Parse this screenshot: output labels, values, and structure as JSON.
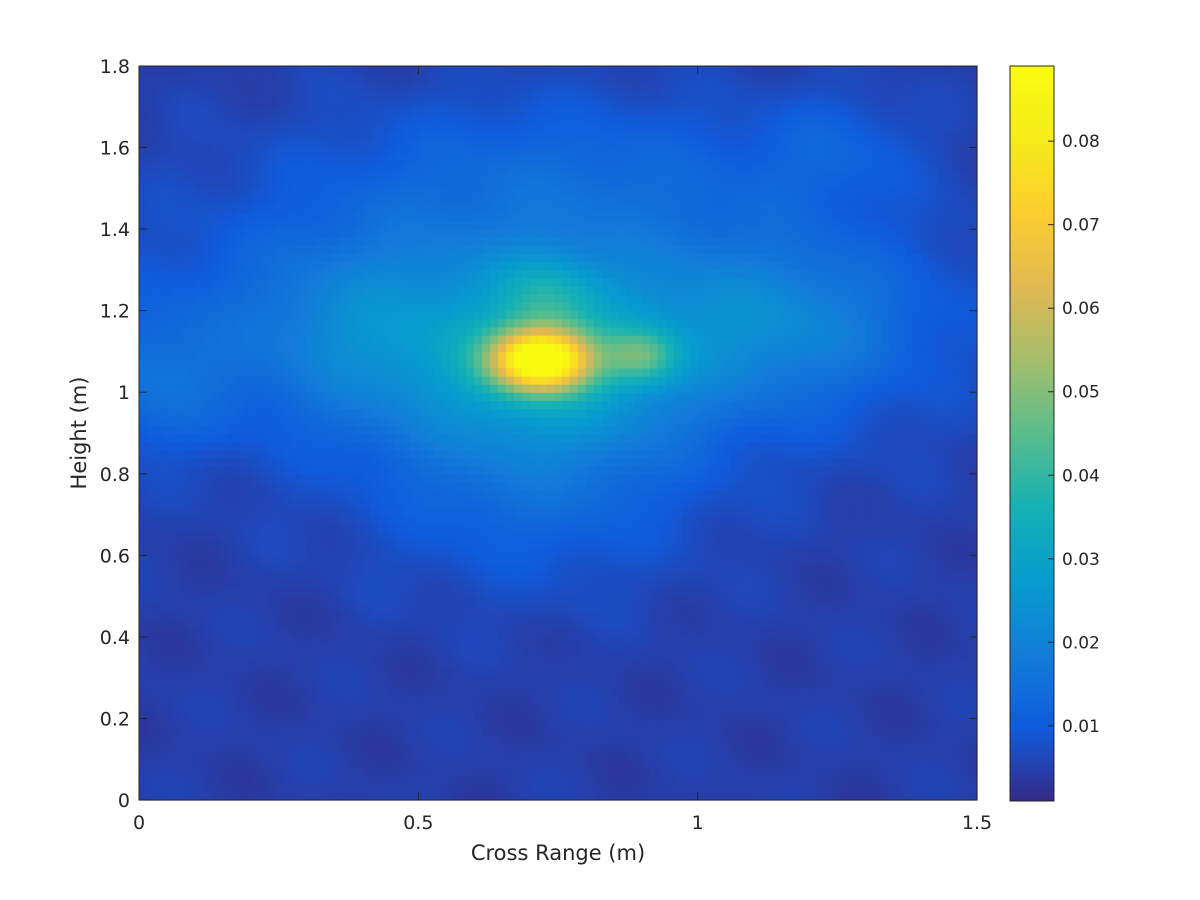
{
  "chart_data": {
    "type": "heatmap",
    "title": "",
    "xlabel": "Cross Range (m)",
    "ylabel": "Height (m)",
    "xlim": [
      0,
      1.5
    ],
    "ylim": [
      0,
      1.8
    ],
    "xticks": [
      0,
      0.5,
      1,
      1.5
    ],
    "xtick_labels": [
      "0",
      "0.5",
      "1",
      "1.5"
    ],
    "yticks": [
      0,
      0.2,
      0.4,
      0.6,
      0.8,
      1.0,
      1.2,
      1.4,
      1.6,
      1.8
    ],
    "ytick_labels": [
      "0",
      "0.2",
      "0.4",
      "0.6",
      "0.8",
      "1",
      "1.2",
      "1.4",
      "1.6",
      "1.8"
    ],
    "grid": false,
    "colormap": "parula",
    "colorbar": {
      "position": "right",
      "range": [
        0.001,
        0.089
      ],
      "ticks": [
        0.01,
        0.02,
        0.03,
        0.04,
        0.05,
        0.06,
        0.07,
        0.08
      ],
      "tick_labels": [
        "0.01",
        "0.02",
        "0.03",
        "0.04",
        "0.05",
        "0.06",
        "0.07",
        "0.08"
      ]
    },
    "peak": {
      "x": 0.72,
      "y": 1.08,
      "value": 0.088
    },
    "intensity_components": [
      {
        "x": 0.72,
        "y": 1.08,
        "sx": 0.06,
        "sy": 0.05,
        "amplitude": 0.07
      },
      {
        "x": 0.73,
        "y": 1.05,
        "sx": 0.17,
        "sy": 0.16,
        "amplitude": 0.017
      },
      {
        "x": 0.9,
        "y": 1.09,
        "sx": 0.045,
        "sy": 0.045,
        "amplitude": 0.02
      },
      {
        "x": 0.73,
        "y": 1.24,
        "sx": 0.06,
        "sy": 0.07,
        "amplitude": 0.012
      },
      {
        "x": 0.7,
        "y": 1.18,
        "sx": 0.45,
        "sy": 0.23,
        "amplitude": 0.013
      },
      {
        "x": 1.15,
        "y": 1.17,
        "sx": 0.16,
        "sy": 0.13,
        "amplitude": 0.01
      },
      {
        "x": 0.4,
        "y": 1.15,
        "sx": 0.14,
        "sy": 0.15,
        "amplitude": 0.008
      },
      {
        "x": 0.02,
        "y": 1.03,
        "sx": 0.1,
        "sy": 0.12,
        "amplitude": 0.008
      },
      {
        "x": 0.75,
        "y": 1.55,
        "sx": 0.3,
        "sy": 0.14,
        "amplitude": 0.006
      },
      {
        "x": 1.25,
        "y": 1.6,
        "sx": 0.1,
        "sy": 0.1,
        "amplitude": 0.005
      },
      {
        "x": 0.7,
        "y": 0.72,
        "sx": 0.2,
        "sy": 0.16,
        "amplitude": 0.006
      }
    ],
    "background_level": 0.0045
  }
}
